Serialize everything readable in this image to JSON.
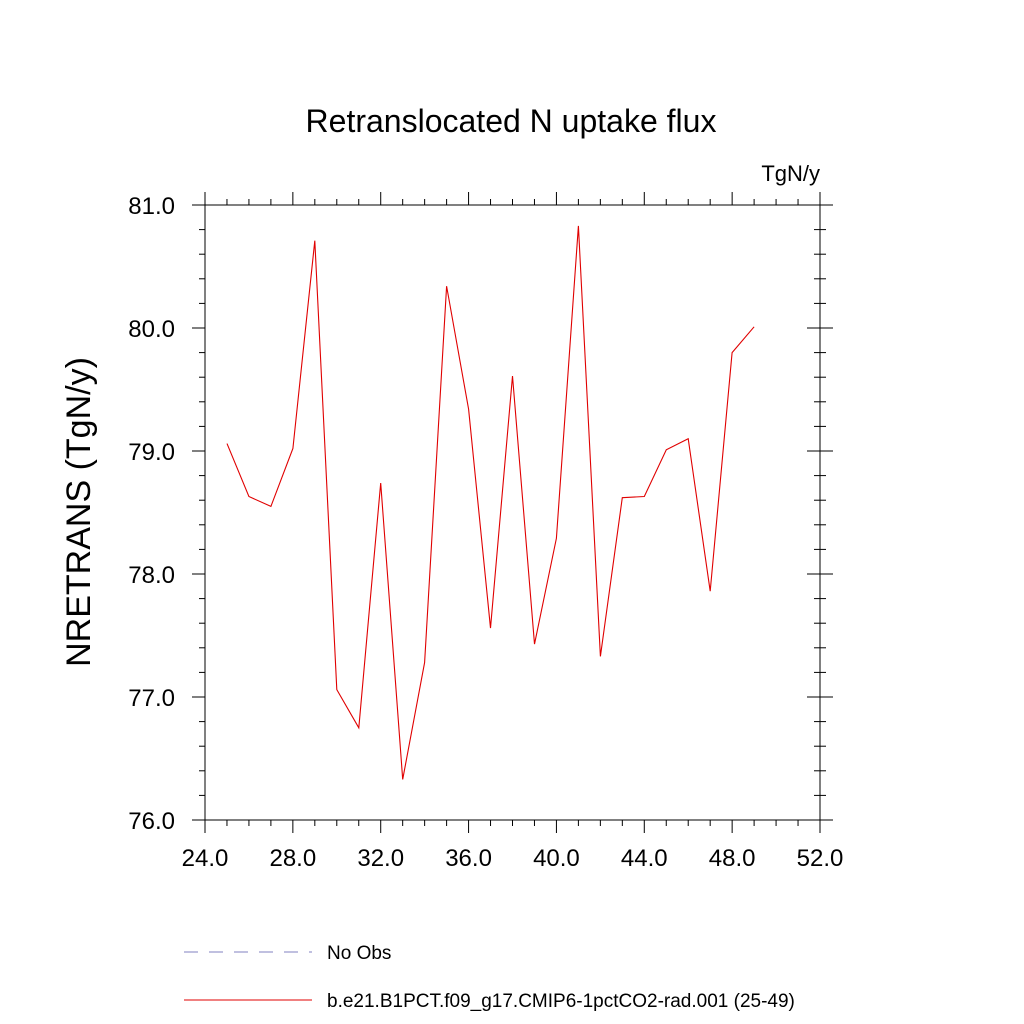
{
  "chart_data": {
    "type": "line",
    "title": "Retranslocated N uptake flux",
    "units_label": "TgN/y",
    "xlabel": "",
    "ylabel": "NRETRANS  (TgN/y)",
    "xlim": [
      24,
      52
    ],
    "ylim": [
      76,
      81
    ],
    "x_ticks": [
      "24.0",
      "28.0",
      "32.0",
      "36.0",
      "40.0",
      "44.0",
      "48.0",
      "52.0"
    ],
    "y_ticks": [
      "76.0",
      "77.0",
      "78.0",
      "79.0",
      "80.0",
      "81.0"
    ],
    "grid": false,
    "legend_position": "bottom",
    "series": [
      {
        "name": "No Obs",
        "color": "#8080c0",
        "dash": "dashed",
        "x": [],
        "values": []
      },
      {
        "name": "b.e21.B1PCT.f09_g17.CMIP6-1pctCO2-rad.001 (25-49)",
        "color": "#e00000",
        "dash": "solid",
        "x": [
          25,
          26,
          27,
          28,
          29,
          30,
          31,
          32,
          33,
          34,
          35,
          36,
          37,
          38,
          39,
          40,
          41,
          42,
          43,
          44,
          45,
          46,
          47,
          48,
          49
        ],
        "values": [
          79.06,
          78.63,
          78.55,
          79.02,
          80.71,
          77.06,
          76.75,
          78.74,
          76.33,
          77.28,
          80.34,
          79.34,
          77.56,
          79.61,
          77.43,
          78.29,
          80.83,
          77.33,
          78.62,
          78.63,
          79.01,
          79.1,
          77.86,
          79.8,
          80.01
        ]
      }
    ]
  }
}
